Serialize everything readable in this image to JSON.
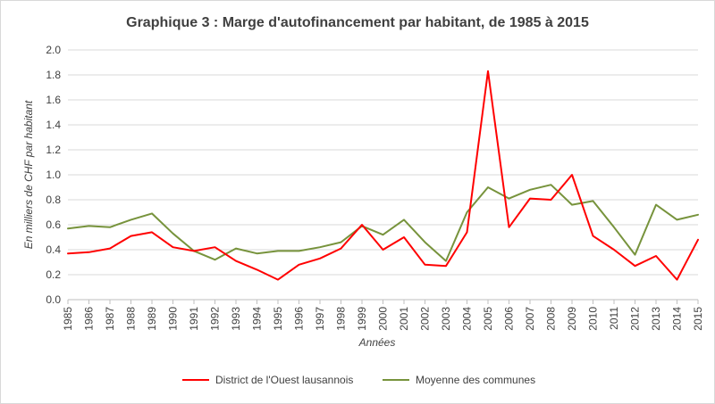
{
  "chart_data": {
    "type": "line",
    "title": "Graphique 3 : Marge d'autofinancement par habitant, de 1985 à 2015",
    "xlabel": "Années",
    "ylabel": "En milliers de CHF par habitant",
    "ylim": [
      0,
      2.0
    ],
    "yticks": [
      "0.0",
      "0.2",
      "0.4",
      "0.6",
      "0.8",
      "1.0",
      "1.2",
      "1.4",
      "1.6",
      "1.8",
      "2.0"
    ],
    "grid": true,
    "legend_position": "bottom",
    "x": [
      "1985",
      "1986",
      "1987",
      "1988",
      "1989",
      "1990",
      "1991",
      "1992",
      "1993",
      "1994",
      "1995",
      "1996",
      "1997",
      "1998",
      "1999",
      "2000",
      "2001",
      "2002",
      "2003",
      "2004",
      "2005",
      "2006",
      "2007",
      "2008",
      "2009",
      "2010",
      "2011",
      "2012",
      "2013",
      "2014",
      "2015"
    ],
    "series": [
      {
        "name": "District de l'Ouest lausannois",
        "color": "#ff0000",
        "values": [
          0.37,
          0.38,
          0.41,
          0.51,
          0.54,
          0.42,
          0.39,
          0.42,
          0.31,
          0.24,
          0.16,
          0.28,
          0.33,
          0.41,
          0.6,
          0.4,
          0.5,
          0.28,
          0.27,
          0.54,
          1.83,
          0.58,
          0.81,
          0.8,
          1.0,
          0.51,
          0.4,
          0.27,
          0.35,
          0.16,
          0.48
        ]
      },
      {
        "name": "Moyenne des communes",
        "color": "#77933c",
        "values": [
          0.57,
          0.59,
          0.58,
          0.64,
          0.69,
          0.53,
          0.39,
          0.32,
          0.41,
          0.37,
          0.39,
          0.39,
          0.42,
          0.46,
          0.59,
          0.52,
          0.64,
          0.46,
          0.31,
          0.7,
          0.9,
          0.81,
          0.88,
          0.92,
          0.76,
          0.79,
          0.58,
          0.36,
          0.76,
          0.64,
          0.68
        ]
      }
    ]
  }
}
